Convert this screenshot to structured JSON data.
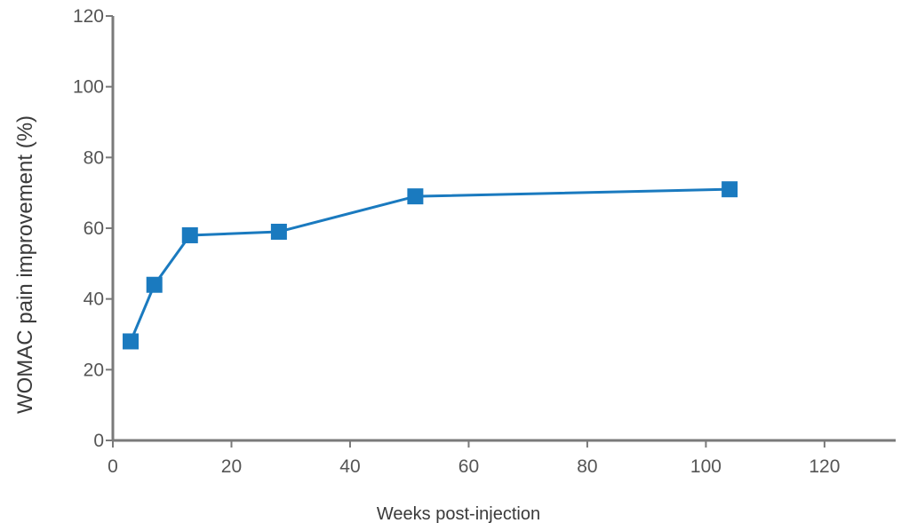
{
  "chart_data": {
    "type": "line",
    "xlabel": "Weeks post-injection",
    "ylabel": "WOMAC pain improvement (%)",
    "xlim": [
      0,
      132
    ],
    "ylim": [
      0,
      120
    ],
    "x_ticks": [
      0,
      20,
      40,
      60,
      80,
      100,
      120
    ],
    "y_ticks": [
      0,
      20,
      40,
      60,
      80,
      100,
      120
    ],
    "grid": false,
    "legend": "none",
    "marker": "square",
    "color": "#1a7abf",
    "series": [
      {
        "x": [
          3,
          7,
          13,
          28,
          51,
          104
        ],
        "values": [
          28,
          44,
          58,
          59,
          69,
          71
        ]
      }
    ]
  }
}
